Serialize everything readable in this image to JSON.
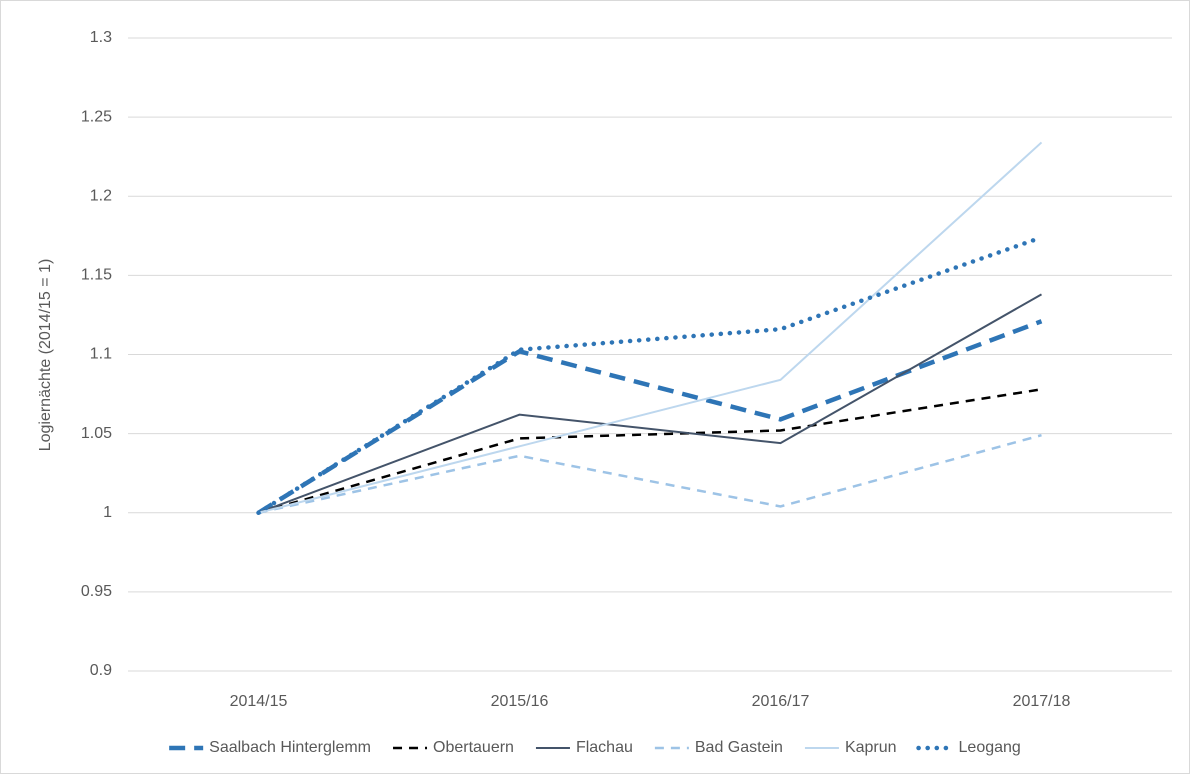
{
  "chart_data": {
    "type": "line",
    "y_label": "Logiernächte (2014/15 = 1)",
    "categories": [
      "2014/15",
      "2015/16",
      "2016/17",
      "2017/18"
    ],
    "series": [
      {
        "name": "Saalbach Hinterglemm",
        "color": "#2e75b6",
        "dash": "longdash",
        "values": [
          1,
          1.102,
          1.059,
          1.121
        ]
      },
      {
        "name": "Obertauern",
        "color": "#000000",
        "dash": "dash",
        "values": [
          1,
          1.047,
          1.052,
          1.078
        ]
      },
      {
        "name": "Flachau",
        "color": "#44546a",
        "dash": "solid",
        "values": [
          1,
          1.062,
          1.044,
          1.138
        ]
      },
      {
        "name": "Bad Gastein",
        "color": "#9dc3e6",
        "dash": "dash",
        "values": [
          1,
          1.036,
          1.004,
          1.049
        ]
      },
      {
        "name": "Kaprun",
        "color": "#bdd7ee",
        "dash": "solid",
        "values": [
          1,
          1.042,
          1.084,
          1.234
        ]
      },
      {
        "name": "Leogang",
        "color": "#2e75b6",
        "dash": "dot",
        "values": [
          1,
          1.103,
          1.116,
          1.174
        ]
      }
    ],
    "ylim": [
      0.9,
      1.3
    ],
    "yticks": [
      0.9,
      0.95,
      1,
      1.05,
      1.1,
      1.15,
      1.2,
      1.25,
      1.3
    ],
    "grid": true,
    "legend": "bottom"
  }
}
